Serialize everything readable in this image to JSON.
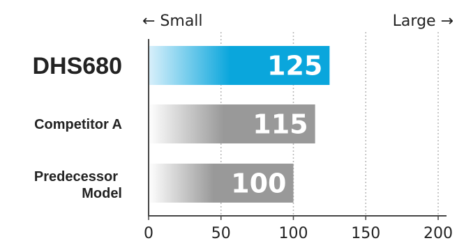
{
  "chart_data": {
    "type": "bar",
    "orientation": "horizontal",
    "categories": [
      "DHS680",
      "Competitor A",
      "Predecessor Model"
    ],
    "values": [
      125,
      115,
      100
    ],
    "value_labels": [
      "125",
      "115",
      "100"
    ],
    "xlim": [
      0,
      200
    ],
    "xticks": [
      0,
      50,
      100,
      150,
      200
    ],
    "xtick_labels": [
      "0",
      "50",
      "100",
      "150",
      "200"
    ],
    "grid": "vertical dotted",
    "direction_labels": {
      "left": "← Small",
      "right": "Large →"
    },
    "colors": {
      "highlight": "#0aa6dc",
      "highlight_light": "#d9f0fb",
      "other": "#999999",
      "other_light": "#ffffff"
    }
  }
}
